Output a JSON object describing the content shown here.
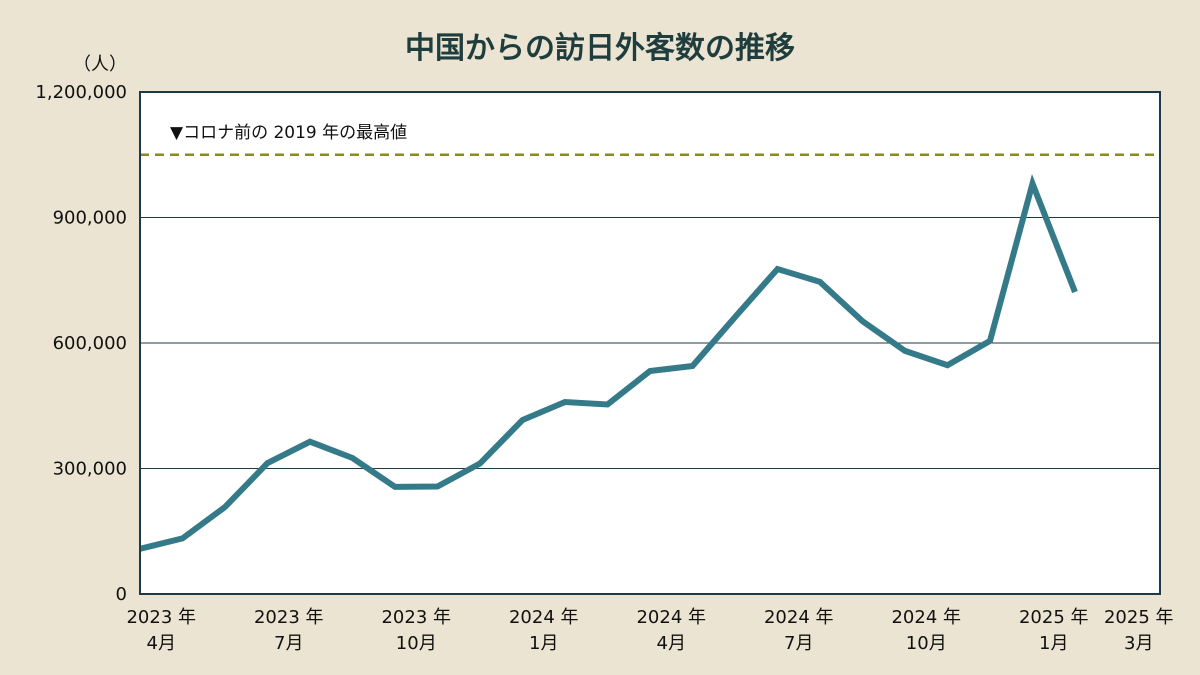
{
  "chart_data": {
    "type": "line",
    "title": "中国からの訪日外客数の推移",
    "y_unit_label": "（人）",
    "ylim": [
      0,
      1200000
    ],
    "y_ticks": [
      0,
      300000,
      600000,
      900000,
      1200000
    ],
    "y_tick_labels": [
      "0",
      "300,000",
      "600,000",
      "900,000",
      "1,200,000"
    ],
    "x_start": "2023-04",
    "x_end": "2025-03",
    "x_tick_labels": [
      {
        "year": "2023 年",
        "month": "4月",
        "index": 0
      },
      {
        "year": "2023 年",
        "month": "7月",
        "index": 3
      },
      {
        "year": "2023 年",
        "month": "10月",
        "index": 6
      },
      {
        "year": "2024 年",
        "month": "1月",
        "index": 9
      },
      {
        "year": "2024 年",
        "month": "4月",
        "index": 12
      },
      {
        "year": "2024 年",
        "month": "7月",
        "index": 15
      },
      {
        "year": "2024 年",
        "month": "10月",
        "index": 18
      },
      {
        "year": "2025 年",
        "month": "1月",
        "index": 21
      },
      {
        "year": "2025 年",
        "month": "3月",
        "index": 23
      }
    ],
    "series": [
      {
        "x": [
          "2023-04",
          "2023-05",
          "2023-06",
          "2023-07",
          "2023-08",
          "2023-09",
          "2023-10",
          "2023-11",
          "2023-12",
          "2024-01",
          "2024-02",
          "2024-03",
          "2024-04",
          "2024-05",
          "2024-06",
          "2024-07",
          "2024-08",
          "2024-09",
          "2024-10",
          "2024-11",
          "2024-12",
          "2025-01",
          "2025-02"
        ],
        "values": [
          108000,
          133000,
          208000,
          313000,
          364000,
          325000,
          256000,
          257000,
          312000,
          416000,
          459000,
          453000,
          533000,
          545000,
          662000,
          777000,
          746000,
          652000,
          581000,
          547000,
          605000,
          981000,
          722000
        ]
      }
    ],
    "reference_line": {
      "value": 1050000,
      "label": "▼コロナ前の 2019 年の最高値"
    },
    "grid": true,
    "colors": {
      "background": "#ebe4d2",
      "plot_background": "#ffffff",
      "line": "#357a89",
      "reference": "#8e8a1e",
      "grid": "#1e3a46",
      "title": "#1f3d3d"
    }
  }
}
